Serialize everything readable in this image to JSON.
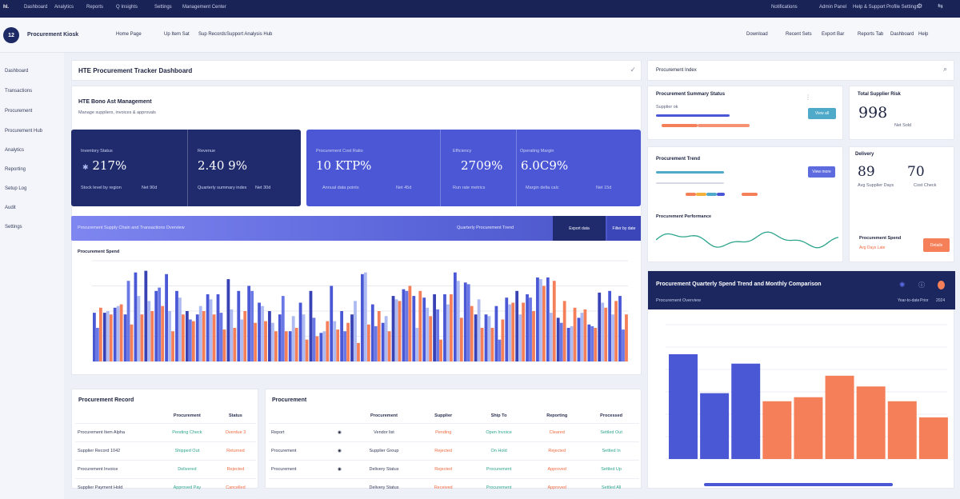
{
  "topbar": {
    "brand": "hl.",
    "items": [
      "Dashboard",
      "Analytics",
      "Reports",
      "Q Insights",
      "Settings",
      "Management Center"
    ],
    "right_items": [
      "Notifications",
      "Admin Panel",
      "Help & Support",
      "Profile Settings"
    ]
  },
  "header": {
    "logo": "12",
    "app_title": "Procurement Kiosk",
    "crumbs": [
      "Home Page",
      "Up Item Sat",
      "Sup Records",
      "Support Analysis Hub"
    ],
    "actions": [
      "Download",
      "Recent Sets",
      "Export Bar",
      "Reports Tab",
      "Dashboard",
      "Help"
    ]
  },
  "sidebar": {
    "items": [
      "Dashboard",
      "Transactions",
      "Procurement",
      "Procurement Hub",
      "Analytics",
      "Reporting",
      "Setup Log",
      "Audit",
      "Settings"
    ]
  },
  "main": {
    "title": "HTE Procurement Tracker Dashboard",
    "section_title": "HTE Bono Ast Management",
    "section_sub": "Manage suppliers, invoices & approvals",
    "kpis": [
      {
        "label": "Inventory Status",
        "value": "217%",
        "foot_left": "Stock level by region",
        "foot_right": "Net 90d"
      },
      {
        "label": "Revenue",
        "value": "2.40 9%",
        "foot_left": "Quarterly summary index",
        "foot_right": "Net 30d"
      },
      {
        "label": "Procurement Cost Ratio",
        "value": "10 KTP%",
        "foot_left": "Annual data points",
        "foot_right": "Net 45d"
      },
      {
        "label": "Efficiency",
        "value": "2709%",
        "foot_left": "Run rate metrics",
        "foot_right": "Net 60d"
      },
      {
        "label": "Operating Margin",
        "value": "6.0C9%",
        "foot_left": "Margin delta calc",
        "foot_right": "Net 15d"
      }
    ],
    "filter_bar": {
      "left": "Procurement Supply Chain and Transactions Overview",
      "mid": "Quarterly Procurement Trend",
      "button1": "Export data",
      "button2": "Filter by date"
    },
    "chart_title": "Procurement Spend"
  },
  "bottom_left": {
    "title": "Procurement Record",
    "headers": [
      "",
      "Procurement",
      "Status"
    ],
    "rows": [
      [
        "Procurement Item Alpha",
        "Pending Check",
        "Overdue 3"
      ],
      [
        "Supplier Record 1042",
        "Shipped Out",
        "Returned"
      ],
      [
        "Procurement Invoice",
        "Delivered",
        "Rejected"
      ],
      [
        "Supplier Payment Hold",
        "Approved Pay",
        "Cancelled"
      ]
    ]
  },
  "bottom_mid": {
    "title": "Procurement",
    "headers": [
      "",
      "",
      "Procurement",
      "Supplier",
      "Ship To",
      "Reporting",
      "Processed"
    ],
    "rows": [
      [
        "Report",
        "",
        "Vendor list",
        "Pending",
        "Open Invoice",
        "Cleared",
        "Settled Out"
      ],
      [
        "Procurement",
        "",
        "Supplier Group",
        "Rejected",
        "On Hold",
        "Rejected",
        "Settled In"
      ],
      [
        "Procurement",
        "",
        "Delivery Status",
        "Rejected",
        "Procurement",
        "Approved",
        "Settled Up"
      ],
      [
        "",
        "",
        "Delivery Status",
        "Received",
        "Procurement",
        "Approved",
        "Settled All"
      ]
    ]
  },
  "right": {
    "search_label": "Procurement Index",
    "card_a": {
      "title": "Procurement Summary Status",
      "sub": "Supplier ok",
      "button": "View all"
    },
    "card_b": {
      "title": "Total Supplier Risk",
      "value": "998",
      "foot": "Net Sold"
    },
    "card_c": {
      "title": "Procurement Trend",
      "button": "View more",
      "sub": "Procurement Performance"
    },
    "card_d": {
      "title": "Delivery",
      "v1": "89",
      "v2": "70",
      "f1": "Avg Supplier Days",
      "f2": "Cost Check",
      "bottom": "Procurement Spend",
      "note": "Avg Days Late",
      "button": "Details"
    },
    "big": {
      "title": "Procurement Quarterly Spend Trend and Monthly Comparison",
      "sub": "Procurement Overview",
      "tags": [
        "Year-to-date",
        "Prior",
        "2024"
      ]
    }
  },
  "colors": {
    "navy": "#1d2a66",
    "indigo": "#4a58d6",
    "orange": "#f47f58",
    "teal": "#2ca58d",
    "lav": "#aebbf2"
  },
  "chart_data": [
    {
      "type": "bar",
      "title": "Procurement Spend",
      "series": [
        {
          "values": [
            29,
            29,
            32,
            28,
            53,
            54,
            42,
            52,
            42,
            30,
            28,
            40,
            40,
            49,
            42,
            45,
            35,
            30,
            28,
            18,
            35,
            42,
            17,
            45,
            30,
            28,
            52,
            34,
            23,
            39,
            43,
            39,
            38,
            40,
            40,
            53,
            47,
            28,
            28,
            33,
            38,
            42,
            40,
            50,
            50,
            26,
            20,
            26,
            22,
            41,
            42,
            39
          ]
        },
        {
          "values": [
            20,
            30,
            33,
            48,
            39,
            36,
            44,
            30,
            38,
            25,
            33,
            37,
            29,
            31,
            25,
            42,
            33,
            23,
            39,
            27,
            28,
            26,
            18,
            24,
            18,
            36,
            53,
            21,
            27,
            37,
            42,
            20,
            32,
            31,
            34,
            48,
            46,
            37,
            27,
            13,
            34,
            28,
            38,
            49,
            29,
            23,
            21,
            29,
            21,
            35,
            28,
            19
          ]
        },
        {
          "values": [
            32,
            28,
            34,
            22,
            28,
            30,
            33,
            18,
            28,
            24,
            30,
            28,
            19,
            20,
            30,
            23,
            24,
            18,
            18,
            20,
            13,
            15,
            24,
            19,
            23,
            11,
            22,
            30,
            18,
            36,
            45,
            42,
            27,
            13,
            40,
            26,
            33,
            20,
            20,
            25,
            35,
            35,
            30,
            45,
            48,
            36,
            32,
            31,
            20,
            32,
            36,
            28
          ]
        }
      ],
      "ylim": [
        0,
        60
      ],
      "grid": true
    },
    {
      "type": "bar",
      "title": "Procurement Quarterly Spend Trend and Monthly Comparison",
      "series": [
        {
          "values": [
            78,
            49,
            71,
            0,
            0,
            0,
            0,
            0,
            0
          ]
        },
        {
          "values": [
            0,
            0,
            0,
            43,
            46,
            62,
            54,
            43,
            31
          ]
        }
      ],
      "ylim": [
        0,
        100
      ],
      "grid": true
    }
  ]
}
